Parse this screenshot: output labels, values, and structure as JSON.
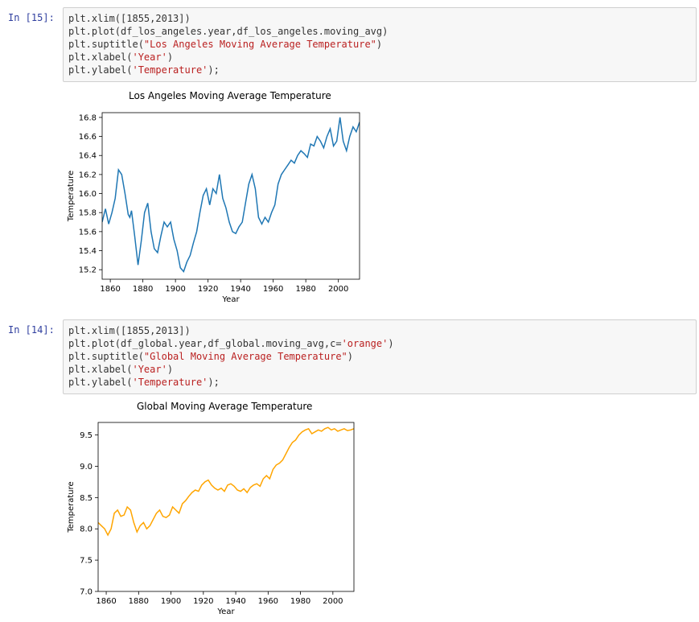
{
  "cells": [
    {
      "prompt": "In [15]:",
      "code": [
        [
          {
            "t": "plt.xlim([1855,2013])"
          }
        ],
        [
          {
            "t": "plt.plot(df_los_angeles.year,df_los_angeles.moving_avg)"
          }
        ],
        [
          {
            "t": "plt.suptitle("
          },
          {
            "t": "\"Los Angeles Moving Average Temperature\"",
            "s": 1
          },
          {
            "t": ")"
          }
        ],
        [
          {
            "t": "plt.xlabel("
          },
          {
            "t": "'Year'",
            "s": 1
          },
          {
            "t": ")"
          }
        ],
        [
          {
            "t": "plt.ylabel("
          },
          {
            "t": "'Temperature'",
            "s": 1
          },
          {
            "t": ");"
          }
        ]
      ]
    },
    {
      "prompt": "In [14]:",
      "code": [
        [
          {
            "t": "plt.xlim([1855,2013])"
          }
        ],
        [
          {
            "t": "plt.plot(df_global.year,df_global.moving_avg,c="
          },
          {
            "t": "'orange'",
            "s": 1
          },
          {
            "t": ")"
          }
        ],
        [
          {
            "t": "plt.suptitle("
          },
          {
            "t": "\"Global Moving Average Temperature\"",
            "s": 1
          },
          {
            "t": ")"
          }
        ],
        [
          {
            "t": "plt.xlabel("
          },
          {
            "t": "'Year'",
            "s": 1
          },
          {
            "t": ")"
          }
        ],
        [
          {
            "t": "plt.ylabel("
          },
          {
            "t": "'Temperature'",
            "s": 1
          },
          {
            "t": ");"
          }
        ]
      ]
    }
  ],
  "chart_data": [
    {
      "type": "line",
      "title": "Los Angeles Moving Average Temperature",
      "xlabel": "Year",
      "ylabel": "Temperature",
      "xlim": [
        1855,
        2013
      ],
      "ylim": [
        15.1,
        16.85
      ],
      "xticks": [
        1860,
        1880,
        1900,
        1920,
        1940,
        1960,
        1980,
        2000
      ],
      "yticks": [
        15.2,
        15.4,
        15.6,
        15.8,
        16.0,
        16.2,
        16.4,
        16.6,
        16.8
      ],
      "ytick_labels": [
        "15.2",
        "15.4",
        "15.6",
        "15.8",
        "16.0",
        "16.2",
        "16.4",
        "16.6",
        "16.8"
      ],
      "color": "#1f77b4",
      "series": [
        {
          "x": [
            1855,
            1857,
            1859,
            1861,
            1863,
            1865,
            1867,
            1869,
            1871,
            1872,
            1873,
            1875,
            1877,
            1879,
            1881,
            1883,
            1885,
            1887,
            1889,
            1891,
            1893,
            1895,
            1897,
            1899,
            1901,
            1903,
            1905,
            1907,
            1909,
            1911,
            1913,
            1915,
            1917,
            1919,
            1921,
            1923,
            1925,
            1927,
            1929,
            1931,
            1933,
            1935,
            1937,
            1939,
            1941,
            1943,
            1945,
            1947,
            1949,
            1951,
            1953,
            1955,
            1957,
            1959,
            1961,
            1963,
            1965,
            1967,
            1969,
            1971,
            1973,
            1975,
            1977,
            1979,
            1981,
            1983,
            1985,
            1987,
            1989,
            1991,
            1993,
            1995,
            1997,
            1999,
            2001,
            2003,
            2005,
            2007,
            2009,
            2011,
            2013
          ],
          "y": [
            15.7,
            15.84,
            15.68,
            15.8,
            15.95,
            16.25,
            16.2,
            16.0,
            15.78,
            15.75,
            15.82,
            15.55,
            15.25,
            15.5,
            15.8,
            15.9,
            15.6,
            15.42,
            15.38,
            15.55,
            15.7,
            15.65,
            15.7,
            15.52,
            15.4,
            15.22,
            15.18,
            15.28,
            15.35,
            15.48,
            15.6,
            15.8,
            15.98,
            16.05,
            15.88,
            16.05,
            16.0,
            16.2,
            15.95,
            15.85,
            15.7,
            15.6,
            15.58,
            15.65,
            15.7,
            15.9,
            16.1,
            16.2,
            16.05,
            15.75,
            15.68,
            15.75,
            15.7,
            15.8,
            15.88,
            16.1,
            16.2,
            16.25,
            16.3,
            16.35,
            16.32,
            16.4,
            16.45,
            16.42,
            16.38,
            16.52,
            16.5,
            16.6,
            16.55,
            16.48,
            16.6,
            16.68,
            16.5,
            16.55,
            16.8,
            16.55,
            16.45,
            16.6,
            16.7,
            16.65,
            16.75
          ]
        }
      ]
    },
    {
      "type": "line",
      "title": "Global Moving Average Temperature",
      "xlabel": "Year",
      "ylabel": "Temperature",
      "xlim": [
        1855,
        2013
      ],
      "ylim": [
        7.0,
        9.7
      ],
      "xticks": [
        1860,
        1880,
        1900,
        1920,
        1940,
        1960,
        1980,
        2000
      ],
      "yticks": [
        7.0,
        7.5,
        8.0,
        8.5,
        9.0,
        9.5
      ],
      "ytick_labels": [
        "7.0",
        "7.5",
        "8.0",
        "8.5",
        "9.0",
        "9.5"
      ],
      "color": "#ffa500",
      "series": [
        {
          "x": [
            1855,
            1857,
            1859,
            1861,
            1863,
            1865,
            1867,
            1869,
            1871,
            1873,
            1875,
            1877,
            1879,
            1881,
            1883,
            1885,
            1887,
            1889,
            1891,
            1893,
            1895,
            1897,
            1899,
            1901,
            1903,
            1905,
            1907,
            1909,
            1911,
            1913,
            1915,
            1917,
            1919,
            1921,
            1923,
            1925,
            1927,
            1929,
            1931,
            1933,
            1935,
            1937,
            1939,
            1941,
            1943,
            1945,
            1947,
            1949,
            1951,
            1953,
            1955,
            1957,
            1959,
            1961,
            1963,
            1965,
            1967,
            1969,
            1971,
            1973,
            1975,
            1977,
            1979,
            1981,
            1983,
            1985,
            1987,
            1989,
            1991,
            1993,
            1995,
            1997,
            1999,
            2001,
            2003,
            2005,
            2007,
            2009,
            2011,
            2013
          ],
          "y": [
            8.1,
            8.05,
            8.0,
            7.9,
            8.0,
            8.25,
            8.3,
            8.2,
            8.22,
            8.35,
            8.3,
            8.1,
            7.95,
            8.05,
            8.1,
            8.0,
            8.05,
            8.15,
            8.25,
            8.3,
            8.2,
            8.18,
            8.22,
            8.35,
            8.3,
            8.25,
            8.4,
            8.45,
            8.52,
            8.58,
            8.62,
            8.6,
            8.7,
            8.75,
            8.78,
            8.7,
            8.65,
            8.62,
            8.65,
            8.6,
            8.7,
            8.72,
            8.68,
            8.62,
            8.6,
            8.64,
            8.58,
            8.66,
            8.7,
            8.72,
            8.68,
            8.8,
            8.85,
            8.8,
            8.95,
            9.02,
            9.05,
            9.1,
            9.2,
            9.3,
            9.38,
            9.42,
            9.5,
            9.55,
            9.58,
            9.6,
            9.52,
            9.55,
            9.58,
            9.56,
            9.6,
            9.62,
            9.58,
            9.6,
            9.56,
            9.58,
            9.6,
            9.57,
            9.58,
            9.6
          ]
        }
      ]
    }
  ]
}
